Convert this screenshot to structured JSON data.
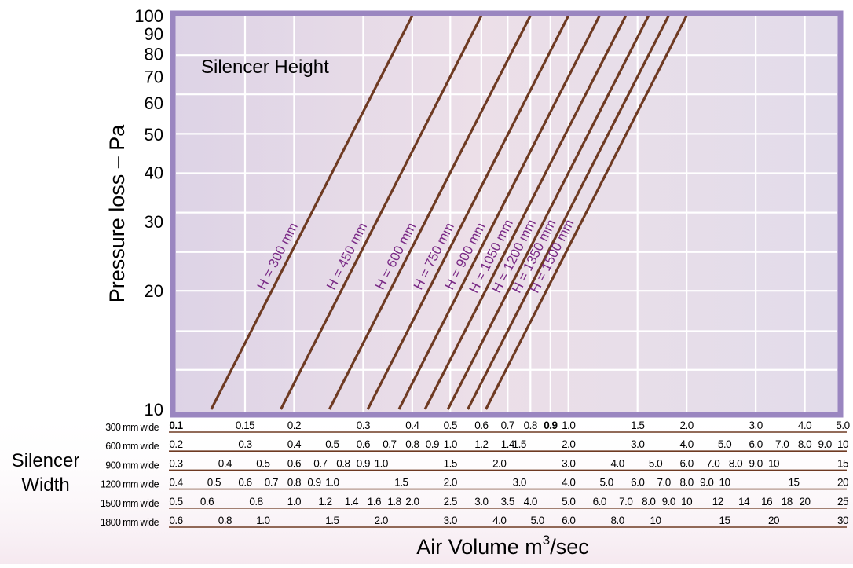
{
  "chart_data": {
    "type": "line",
    "title": "",
    "panel_label": "Silencer Height",
    "ylabel": "Pressure loss – Pa",
    "xlabel_main": "Air Volume m",
    "xlabel_sup": "3",
    "xlabel_tail": "/sec",
    "width_block_label": [
      "Silencer",
      "Width"
    ],
    "y_scale": "log",
    "ylim": [
      10,
      100
    ],
    "yticks": [
      {
        "v": 10,
        "label": "10"
      },
      {
        "v": 20,
        "label": "20"
      },
      {
        "v": 30,
        "label": "30"
      },
      {
        "v": 40,
        "label": "40"
      },
      {
        "v": 50,
        "label": "50"
      },
      {
        "v": 60,
        "label": "60"
      },
      {
        "v": 70,
        "label": "70"
      },
      {
        "v": 80,
        "label": "80"
      },
      {
        "v": 90,
        "label": "90"
      },
      {
        "v": 100,
        "label": "100"
      }
    ],
    "x_scale": "log",
    "x_reference_axis": "300mm wide",
    "xlim": [
      0.1,
      5.0
    ],
    "grid": true,
    "series": [
      {
        "name": "H = 300 mm",
        "x": [
          0.123,
          0.4
        ],
        "y": [
          10,
          100
        ]
      },
      {
        "name": "H = 450 mm",
        "x": [
          0.185,
          0.6
        ],
        "y": [
          10,
          100
        ]
      },
      {
        "name": "H = 600 mm",
        "x": [
          0.246,
          0.8
        ],
        "y": [
          10,
          100
        ]
      },
      {
        "name": "H = 750 mm",
        "x": [
          0.308,
          1.0
        ],
        "y": [
          10,
          100
        ]
      },
      {
        "name": "H = 900 mm",
        "x": [
          0.37,
          1.2
        ],
        "y": [
          10,
          100
        ]
      },
      {
        "name": "H = 1050 mm",
        "x": [
          0.431,
          1.4
        ],
        "y": [
          10,
          100
        ]
      },
      {
        "name": "H = 1200 mm",
        "x": [
          0.493,
          1.6
        ],
        "y": [
          10,
          100
        ]
      },
      {
        "name": "H = 1350 mm",
        "x": [
          0.554,
          1.8
        ],
        "y": [
          10,
          100
        ]
      },
      {
        "name": "H = 1500 mm",
        "x": [
          0.616,
          2.0
        ],
        "y": [
          10,
          100
        ]
      }
    ],
    "width_axes": [
      {
        "label": "300 mm wide",
        "ticks": [
          {
            "v": 0.1,
            "label": "0.1",
            "bold": true
          },
          {
            "v": 0.15,
            "label": "0.15"
          },
          {
            "v": 0.2,
            "label": "0.2"
          },
          {
            "v": 0.3,
            "label": "0.3"
          },
          {
            "v": 0.4,
            "label": "0.4"
          },
          {
            "v": 0.5,
            "label": "0.5"
          },
          {
            "v": 0.6,
            "label": "0.6"
          },
          {
            "v": 0.7,
            "label": "0.7"
          },
          {
            "v": 0.8,
            "label": "0.8"
          },
          {
            "v": 0.9,
            "label": "0.9",
            "bold": true
          },
          {
            "v": 1.0,
            "label": "1.0"
          },
          {
            "v": 1.5,
            "label": "1.5"
          },
          {
            "v": 2.0,
            "label": "2.0"
          },
          {
            "v": 3.0,
            "label": "3.0"
          },
          {
            "v": 4.0,
            "label": "4.0"
          },
          {
            "v": 5.0,
            "label": "5.0"
          }
        ]
      },
      {
        "label": "600 mm wide",
        "ticks": [
          {
            "v": 0.2,
            "label": "0.2"
          },
          {
            "v": 0.3,
            "label": "0.3"
          },
          {
            "v": 0.4,
            "label": "0.4"
          },
          {
            "v": 0.5,
            "label": "0.5"
          },
          {
            "v": 0.6,
            "label": "0.6"
          },
          {
            "v": 0.7,
            "label": "0.7"
          },
          {
            "v": 0.8,
            "label": "0.8"
          },
          {
            "v": 0.9,
            "label": "0.9"
          },
          {
            "v": 1.0,
            "label": "1.0"
          },
          {
            "v": 1.2,
            "label": "1.2"
          },
          {
            "v": 1.4,
            "label": "1.4"
          },
          {
            "v": 1.5,
            "label": "1.5"
          },
          {
            "v": 2.0,
            "label": "2.0"
          },
          {
            "v": 3.0,
            "label": "3.0"
          },
          {
            "v": 4.0,
            "label": "4.0"
          },
          {
            "v": 5.0,
            "label": "5.0"
          },
          {
            "v": 6.0,
            "label": "6.0"
          },
          {
            "v": 7.0,
            "label": "7.0"
          },
          {
            "v": 8.0,
            "label": "8.0"
          },
          {
            "v": 9.0,
            "label": "9.0"
          },
          {
            "v": 10,
            "label": "10"
          }
        ]
      },
      {
        "label": "900 mm wide",
        "ticks": [
          {
            "v": 0.3,
            "label": "0.3"
          },
          {
            "v": 0.4,
            "label": "0.4"
          },
          {
            "v": 0.5,
            "label": "0.5"
          },
          {
            "v": 0.6,
            "label": "0.6"
          },
          {
            "v": 0.7,
            "label": "0.7"
          },
          {
            "v": 0.8,
            "label": "0.8"
          },
          {
            "v": 0.9,
            "label": "0.9"
          },
          {
            "v": 1.0,
            "label": "1.0"
          },
          {
            "v": 1.5,
            "label": "1.5"
          },
          {
            "v": 2.0,
            "label": "2.0"
          },
          {
            "v": 3.0,
            "label": "3.0"
          },
          {
            "v": 4.0,
            "label": "4.0"
          },
          {
            "v": 5.0,
            "label": "5.0"
          },
          {
            "v": 6.0,
            "label": "6.0"
          },
          {
            "v": 7.0,
            "label": "7.0"
          },
          {
            "v": 8.0,
            "label": "8.0"
          },
          {
            "v": 9.0,
            "label": "9.0"
          },
          {
            "v": 10,
            "label": "10"
          },
          {
            "v": 15,
            "label": "15"
          }
        ]
      },
      {
        "label": "1200 mm wide",
        "ticks": [
          {
            "v": 0.4,
            "label": "0.4"
          },
          {
            "v": 0.5,
            "label": "0.5"
          },
          {
            "v": 0.6,
            "label": "0.6"
          },
          {
            "v": 0.7,
            "label": "0.7"
          },
          {
            "v": 0.8,
            "label": "0.8"
          },
          {
            "v": 0.9,
            "label": "0.9"
          },
          {
            "v": 1.0,
            "label": "1.0"
          },
          {
            "v": 1.5,
            "label": "1.5"
          },
          {
            "v": 2.0,
            "label": "2.0"
          },
          {
            "v": 3.0,
            "label": "3.0"
          },
          {
            "v": 4.0,
            "label": "4.0"
          },
          {
            "v": 5.0,
            "label": "5.0"
          },
          {
            "v": 6.0,
            "label": "6.0"
          },
          {
            "v": 7.0,
            "label": "7.0"
          },
          {
            "v": 8.0,
            "label": "8.0"
          },
          {
            "v": 9.0,
            "label": "9.0"
          },
          {
            "v": 10,
            "label": "10"
          },
          {
            "v": 15,
            "label": "15"
          },
          {
            "v": 20,
            "label": "20"
          }
        ]
      },
      {
        "label": "1500 mm wide",
        "ticks": [
          {
            "v": 0.5,
            "label": "0.5"
          },
          {
            "v": 0.6,
            "label": "0.6"
          },
          {
            "v": 0.8,
            "label": "0.8"
          },
          {
            "v": 1.0,
            "label": "1.0"
          },
          {
            "v": 1.2,
            "label": "1.2"
          },
          {
            "v": 1.4,
            "label": "1.4"
          },
          {
            "v": 1.6,
            "label": "1.6"
          },
          {
            "v": 1.8,
            "label": "1.8"
          },
          {
            "v": 2.0,
            "label": "2.0"
          },
          {
            "v": 2.5,
            "label": "2.5"
          },
          {
            "v": 3.0,
            "label": "3.0"
          },
          {
            "v": 3.5,
            "label": "3.5"
          },
          {
            "v": 4.0,
            "label": "4.0"
          },
          {
            "v": 5.0,
            "label": "5.0"
          },
          {
            "v": 6.0,
            "label": "6.0"
          },
          {
            "v": 7.0,
            "label": "7.0"
          },
          {
            "v": 8.0,
            "label": "8.0"
          },
          {
            "v": 9.0,
            "label": "9.0"
          },
          {
            "v": 10,
            "label": "10"
          },
          {
            "v": 12,
            "label": "12"
          },
          {
            "v": 14,
            "label": "14"
          },
          {
            "v": 16,
            "label": "16"
          },
          {
            "v": 18,
            "label": "18"
          },
          {
            "v": 20,
            "label": "20"
          },
          {
            "v": 25,
            "label": "25"
          }
        ]
      },
      {
        "label": "1800 mm wide",
        "ticks": [
          {
            "v": 0.6,
            "label": "0.6"
          },
          {
            "v": 0.8,
            "label": "0.8"
          },
          {
            "v": 1.0,
            "label": "1.0"
          },
          {
            "v": 1.5,
            "label": "1.5"
          },
          {
            "v": 2.0,
            "label": "2.0"
          },
          {
            "v": 3.0,
            "label": "3.0"
          },
          {
            "v": 4.0,
            "label": "4.0"
          },
          {
            "v": 5.0,
            "label": "5.0"
          },
          {
            "v": 6.0,
            "label": "6.0"
          },
          {
            "v": 8.0,
            "label": "8.0"
          },
          {
            "v": 10,
            "label": "10"
          },
          {
            "v": 15,
            "label": "15"
          },
          {
            "v": 20,
            "label": "20"
          },
          {
            "v": 30,
            "label": "30"
          }
        ]
      }
    ]
  },
  "colors": {
    "frame": "#9a86c0",
    "plot_bg": "#e6dce9",
    "grid": "#ffffff",
    "line": "#6e3a22",
    "series_label": "#7a2a86",
    "text": "#000000",
    "scale_rule": "#6e3a22"
  }
}
